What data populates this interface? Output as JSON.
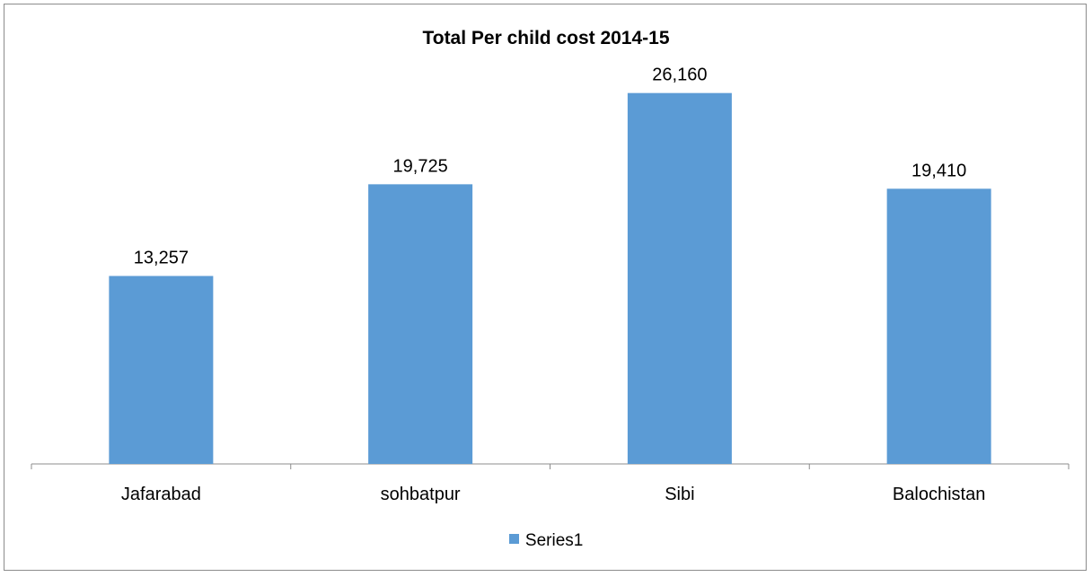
{
  "chart_data": {
    "type": "bar",
    "title": "Total Per child cost 2014-15",
    "categories": [
      "Jafarabad",
      "sohbatpur",
      "Sibi",
      "Balochistan"
    ],
    "series": [
      {
        "name": "Series1",
        "values": [
          13257,
          19725,
          26160,
          19410
        ],
        "labels": [
          "13,257",
          "19,725",
          "26,160",
          "19,410"
        ],
        "color": "#5b9bd5"
      }
    ],
    "ylim": [
      0,
      30000
    ],
    "grid": false,
    "legend_position": "bottom"
  }
}
